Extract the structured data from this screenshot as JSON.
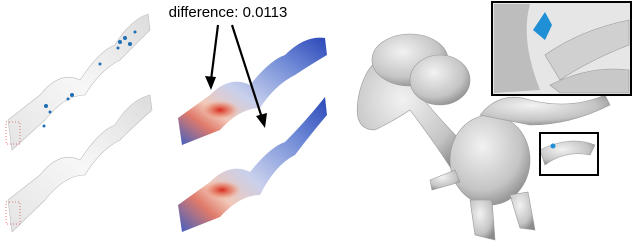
{
  "annotation": {
    "text": "difference: 0.0113"
  }
}
